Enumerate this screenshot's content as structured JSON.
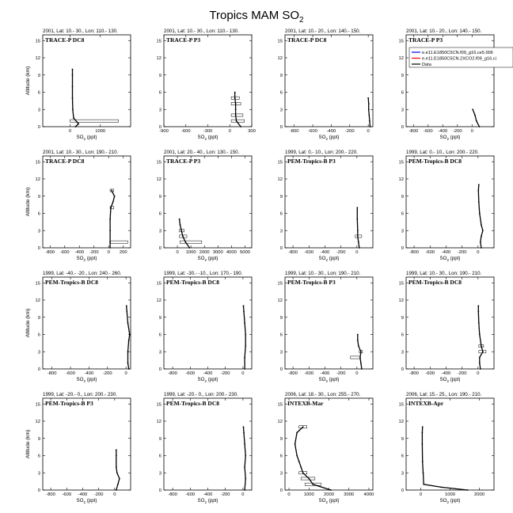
{
  "figure": {
    "title": "Tropics MAM SO",
    "title_sub": "2",
    "ylabel": "Altitude (km)",
    "xlabel_main": "SO",
    "xlabel_sub": "2",
    "xlabel_unit": " (ppt)"
  },
  "legend": {
    "panel_index": 3,
    "entries": [
      {
        "label": "e.e11.E1850C5CN.f09_g16.ce5.006",
        "color": "#0000ff"
      },
      {
        "label": "e.e11.E1850C5CN.2XCO2.f09_g16.ci",
        "color": "#ff0000"
      },
      {
        "label": "Data",
        "color": "#000000"
      }
    ]
  },
  "chart_data": [
    {
      "type": "line",
      "header": "2001, Lat: 10.- 30., Lon: 110.- 130.",
      "campaign": "TRACE-P DC8",
      "xlim": [
        -900,
        2000
      ],
      "xticks": [
        0,
        1000
      ],
      "ylim": [
        0,
        16
      ],
      "yticks": [
        0,
        3,
        6,
        9,
        12,
        15
      ],
      "series": [
        {
          "name": "Data",
          "points": [
            [
              180,
              0
            ],
            [
              280,
              0.5
            ],
            [
              120,
              1.5
            ],
            [
              90,
              3
            ],
            [
              80,
              5
            ],
            [
              80,
              7
            ],
            [
              80,
              9
            ],
            [
              80,
              10
            ]
          ]
        }
      ],
      "spread": [
        {
          "y": 1,
          "lo": 0,
          "hi": 1600
        }
      ]
    },
    {
      "type": "line",
      "header": "2001, Lat: 10.- 30., Lon: 110.- 130.",
      "campaign": "TRACE-P P3",
      "xlim": [
        -900,
        300
      ],
      "xticks": [
        -900,
        -600,
        -300,
        0,
        300
      ],
      "ylim": [
        0,
        16
      ],
      "yticks": [
        0,
        3,
        6,
        9,
        12,
        15
      ],
      "series": [
        {
          "name": "Data",
          "points": [
            [
              150,
              0
            ],
            [
              90,
              1
            ],
            [
              80,
              2
            ],
            [
              80,
              3
            ],
            [
              80,
              4
            ],
            [
              70,
              5
            ],
            [
              70,
              6
            ]
          ]
        }
      ],
      "spread": [
        {
          "y": 1,
          "lo": 20,
          "hi": 200
        },
        {
          "y": 2,
          "lo": 20,
          "hi": 180
        },
        {
          "y": 4,
          "lo": 20,
          "hi": 150
        },
        {
          "y": 5,
          "lo": 20,
          "hi": 130
        }
      ]
    },
    {
      "type": "line",
      "header": "2001, Lat: 10.- 20., Lon: 140.- 150.",
      "campaign": "TRACE-P DC8",
      "xlim": [
        -900,
        50
      ],
      "xticks": [
        -800,
        -600,
        -400,
        -200,
        0
      ],
      "ylim": [
        0,
        16
      ],
      "yticks": [
        0,
        3,
        6,
        9,
        12,
        15
      ],
      "series": [
        {
          "name": "Data",
          "points": [
            [
              20,
              0
            ],
            [
              15,
              1
            ],
            [
              10,
              2
            ],
            [
              5,
              3
            ],
            [
              5,
              4
            ],
            [
              0,
              5
            ]
          ]
        }
      ],
      "spread": []
    },
    {
      "type": "line",
      "header": "2001, Lat: 10.- 20., Lon: 140.- 150.",
      "campaign": "TRACE-P P3",
      "xlim": [
        -900,
        300
      ],
      "xticks": [
        -800,
        -600,
        -400,
        -200,
        0
      ],
      "ylim": [
        0,
        16
      ],
      "yticks": [
        0,
        3,
        6,
        9,
        12,
        15
      ],
      "series": [
        {
          "name": "Data",
          "points": [
            [
              100,
              0
            ],
            [
              60,
              1
            ],
            [
              40,
              2
            ],
            [
              10,
              3
            ]
          ]
        }
      ],
      "spread": []
    },
    {
      "type": "line",
      "header": "2001, Lat: 10.- 30., Lon: 190.- 210.",
      "campaign": "TRACE-P DC8",
      "xlim": [
        -900,
        300
      ],
      "xticks": [
        -800,
        -600,
        -400,
        -200,
        0,
        200
      ],
      "ylim": [
        0,
        16
      ],
      "yticks": [
        0,
        3,
        6,
        9,
        12,
        15
      ],
      "series": [
        {
          "name": "Data",
          "points": [
            [
              20,
              0
            ],
            [
              20,
              1
            ],
            [
              20,
              3
            ],
            [
              20,
              5
            ],
            [
              30,
              7
            ],
            [
              60,
              8
            ],
            [
              80,
              9
            ],
            [
              40,
              10
            ]
          ]
        }
      ],
      "spread": [
        {
          "y": 1,
          "lo": 20,
          "hi": 260
        },
        {
          "y": 7,
          "lo": 20,
          "hi": 70
        },
        {
          "y": 10,
          "lo": 20,
          "hi": 70
        }
      ]
    },
    {
      "type": "line",
      "header": "2001, Lat: 20.- 40., Lon: 130.- 150.",
      "campaign": "TRACE-P P3",
      "xlim": [
        -1000,
        5500
      ],
      "xticks": [
        0,
        1000,
        2000,
        3000,
        4000,
        5000
      ],
      "ylim": [
        0,
        16
      ],
      "yticks": [
        0,
        3,
        6,
        9,
        12,
        15
      ],
      "series": [
        {
          "name": "Data",
          "points": [
            [
              900,
              0
            ],
            [
              600,
              1
            ],
            [
              400,
              2
            ],
            [
              300,
              3
            ],
            [
              200,
              4
            ],
            [
              150,
              5
            ]
          ]
        }
      ],
      "spread": [
        {
          "y": 1,
          "lo": 200,
          "hi": 1800
        },
        {
          "y": 2,
          "lo": 150,
          "hi": 700
        },
        {
          "y": 3,
          "lo": 150,
          "hi": 500
        }
      ]
    },
    {
      "type": "line",
      "header": "1999, Lat: 0.- 10., Lon: 200.- 220.",
      "campaign": "PEM-Tropics-B P3",
      "xlim": [
        -900,
        200
      ],
      "xticks": [
        -800,
        -600,
        -400,
        -200,
        0
      ],
      "ylim": [
        0,
        16
      ],
      "yticks": [
        0,
        3,
        6,
        9,
        12,
        15
      ],
      "series": [
        {
          "name": "Data",
          "points": [
            [
              30,
              0
            ],
            [
              20,
              1
            ],
            [
              10,
              2
            ],
            [
              10,
              3
            ],
            [
              5,
              5
            ],
            [
              5,
              7
            ]
          ]
        }
      ],
      "spread": [
        {
          "y": 2,
          "lo": -20,
          "hi": 60
        }
      ]
    },
    {
      "type": "line",
      "header": "1999, Lat: 0.- 10., Lon: 200.- 220.",
      "campaign": "PEM-Tropics-B DC8",
      "xlim": [
        -900,
        200
      ],
      "xticks": [
        -800,
        -600,
        -400,
        -200,
        0
      ],
      "ylim": [
        0,
        16
      ],
      "yticks": [
        0,
        3,
        6,
        9,
        12,
        15
      ],
      "series": [
        {
          "name": "Data",
          "points": [
            [
              40,
              0
            ],
            [
              30,
              1
            ],
            [
              40,
              2
            ],
            [
              60,
              3
            ],
            [
              40,
              4
            ],
            [
              20,
              6
            ],
            [
              10,
              8
            ],
            [
              5,
              10
            ],
            [
              10,
              11
            ]
          ]
        }
      ],
      "spread": []
    },
    {
      "type": "line",
      "header": "1999, Lat: -40.- -20., Lon: 240.- 260.",
      "campaign": "PEM-Tropics-B DC8",
      "xlim": [
        -900,
        50
      ],
      "xticks": [
        -800,
        -600,
        -400,
        -200,
        0
      ],
      "ylim": [
        0,
        16
      ],
      "yticks": [
        0,
        3,
        6,
        9,
        12,
        15
      ],
      "series": [
        {
          "name": "Data",
          "points": [
            [
              30,
              0
            ],
            [
              20,
              1
            ],
            [
              20,
              3
            ],
            [
              30,
              5
            ],
            [
              40,
              6
            ],
            [
              20,
              8
            ],
            [
              10,
              10
            ],
            [
              5,
              11
            ]
          ]
        }
      ],
      "spread": []
    },
    {
      "type": "line",
      "header": "1999, Lat: -30.- -10., Lon: 170.- 190.",
      "campaign": "PEM-Tropics-B DC8",
      "xlim": [
        -900,
        100
      ],
      "xticks": [
        -800,
        -600,
        -400,
        -200,
        0
      ],
      "ylim": [
        0,
        16
      ],
      "yticks": [
        0,
        3,
        6,
        9,
        12,
        15
      ],
      "series": [
        {
          "name": "Data",
          "points": [
            [
              20,
              0
            ],
            [
              20,
              2
            ],
            [
              30,
              4
            ],
            [
              30,
              6
            ],
            [
              20,
              8
            ],
            [
              10,
              10
            ],
            [
              5,
              11
            ]
          ]
        }
      ],
      "spread": []
    },
    {
      "type": "line",
      "header": "1999, Lat: 10.- 30., Lon: 190.- 210.",
      "campaign": "PEM-Tropics-B P3",
      "xlim": [
        -900,
        200
      ],
      "xticks": [
        -800,
        -600,
        -400,
        -200,
        0
      ],
      "ylim": [
        0,
        16
      ],
      "yticks": [
        0,
        3,
        6,
        9,
        12,
        15
      ],
      "series": [
        {
          "name": "Data",
          "points": [
            [
              60,
              0
            ],
            [
              50,
              1
            ],
            [
              40,
              2
            ],
            [
              50,
              3
            ],
            [
              20,
              4
            ],
            [
              10,
              5
            ],
            [
              10,
              6
            ]
          ]
        }
      ],
      "spread": [
        {
          "y": 2,
          "lo": -80,
          "hi": 40
        },
        {
          "y": 3,
          "lo": 30,
          "hi": 70
        }
      ]
    },
    {
      "type": "line",
      "header": "1999, Lat: 10.- 30., Lon: 190.- 210.",
      "campaign": "PEM-Tropics-B DC8",
      "xlim": [
        -900,
        200
      ],
      "xticks": [
        -800,
        -600,
        -400,
        -200,
        0
      ],
      "ylim": [
        0,
        16
      ],
      "yticks": [
        0,
        3,
        6,
        9,
        12,
        15
      ],
      "series": [
        {
          "name": "Data",
          "points": [
            [
              30,
              0
            ],
            [
              20,
              1
            ],
            [
              20,
              2
            ],
            [
              60,
              3
            ],
            [
              40,
              4
            ],
            [
              20,
              6
            ],
            [
              10,
              8
            ],
            [
              5,
              10
            ],
            [
              5,
              11
            ]
          ]
        }
      ],
      "spread": [
        {
          "y": 3,
          "lo": 10,
          "hi": 100
        },
        {
          "y": 4,
          "lo": 10,
          "hi": 70
        }
      ]
    },
    {
      "type": "line",
      "header": "1999, Lat: -20.- 0., Lon: 200.- 230.",
      "campaign": "PEM-Tropics-B P3",
      "xlim": [
        -900,
        200
      ],
      "xticks": [
        -800,
        -600,
        -400,
        -200,
        0
      ],
      "ylim": [
        0,
        16
      ],
      "yticks": [
        0,
        3,
        6,
        9,
        12,
        15
      ],
      "series": [
        {
          "name": "Data",
          "points": [
            [
              20,
              0
            ],
            [
              40,
              1
            ],
            [
              60,
              2
            ],
            [
              30,
              3
            ],
            [
              20,
              4
            ],
            [
              20,
              6
            ],
            [
              20,
              7
            ]
          ]
        }
      ],
      "spread": []
    },
    {
      "type": "line",
      "header": "1999, Lat: -20.- 0., Lon: 200.- 230.",
      "campaign": "PEM-Tropics-B DC8",
      "xlim": [
        -900,
        100
      ],
      "xticks": [
        -800,
        -600,
        -400,
        -200,
        0
      ],
      "ylim": [
        0,
        16
      ],
      "yticks": [
        0,
        3,
        6,
        9,
        12,
        15
      ],
      "series": [
        {
          "name": "Data",
          "points": [
            [
              20,
              0
            ],
            [
              30,
              2
            ],
            [
              20,
              4
            ],
            [
              30,
              6
            ],
            [
              20,
              8
            ],
            [
              10,
              10
            ],
            [
              5,
              11
            ]
          ]
        }
      ],
      "spread": []
    },
    {
      "type": "line",
      "header": "2006, Lat: 18.- 30., Lon: 255.- 270.",
      "campaign": "INTEXB-Mar",
      "xlim": [
        -200,
        4200
      ],
      "xticks": [
        0,
        1000,
        2000,
        3000,
        4000
      ],
      "ylim": [
        0,
        16
      ],
      "yticks": [
        0,
        3,
        6,
        9,
        12,
        15
      ],
      "series": [
        {
          "name": "Data",
          "points": [
            [
              2100,
              0
            ],
            [
              1200,
              1
            ],
            [
              1000,
              2
            ],
            [
              700,
              3
            ],
            [
              600,
              4
            ],
            [
              500,
              5
            ],
            [
              400,
              6
            ],
            [
              300,
              8
            ],
            [
              400,
              10
            ],
            [
              700,
              11
            ]
          ]
        }
      ],
      "spread": [
        {
          "y": 1,
          "lo": 800,
          "hi": 1600
        },
        {
          "y": 2,
          "lo": 600,
          "hi": 1300
        },
        {
          "y": 3,
          "lo": 500,
          "hi": 900
        },
        {
          "y": 11,
          "lo": 500,
          "hi": 900
        }
      ]
    },
    {
      "type": "line",
      "header": "2006, Lat: 15.- 25., Lon: 190.- 210.",
      "campaign": "INTEXB-Apr",
      "xlim": [
        -500,
        2500
      ],
      "xticks": [
        0,
        1000,
        2000
      ],
      "ylim": [
        0,
        16
      ],
      "yticks": [
        0,
        3,
        6,
        9,
        12,
        15
      ],
      "series": [
        {
          "name": "Data",
          "points": [
            [
              1600,
              0
            ],
            [
              700,
              0.5
            ],
            [
              100,
              1
            ],
            [
              80,
              3
            ],
            [
              60,
              5
            ],
            [
              50,
              8
            ],
            [
              50,
              10
            ],
            [
              60,
              11
            ]
          ]
        }
      ],
      "spread": []
    }
  ]
}
